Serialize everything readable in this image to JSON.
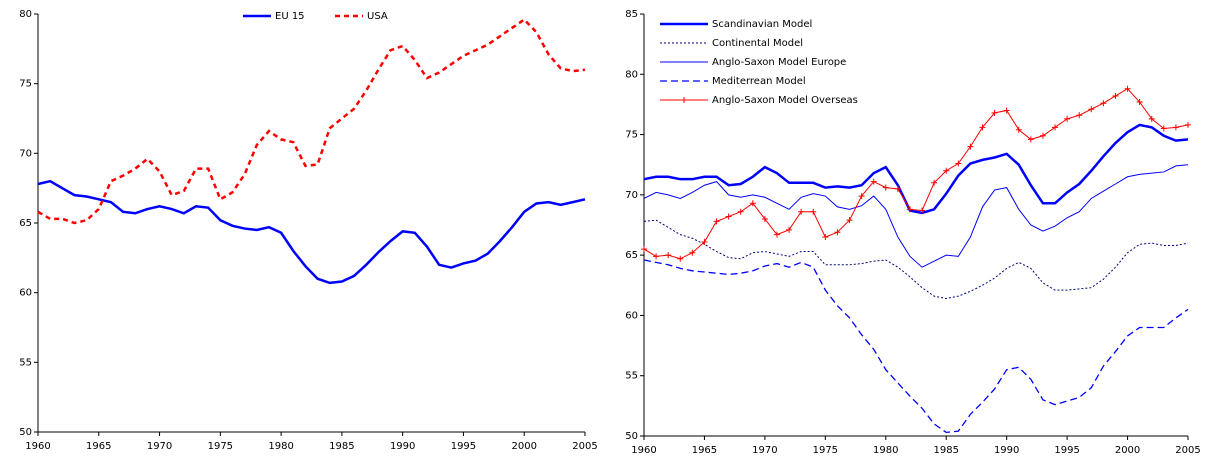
{
  "chart_data": [
    {
      "type": "line",
      "x": [
        1960,
        1961,
        1962,
        1963,
        1964,
        1965,
        1966,
        1967,
        1968,
        1969,
        1970,
        1971,
        1972,
        1973,
        1974,
        1975,
        1976,
        1977,
        1978,
        1979,
        1980,
        1981,
        1982,
        1983,
        1984,
        1985,
        1986,
        1987,
        1988,
        1989,
        1990,
        1991,
        1992,
        1993,
        1994,
        1995,
        1996,
        1997,
        1998,
        1999,
        2000,
        2001,
        2002,
        2003,
        2004,
        2005
      ],
      "xlim": [
        1960,
        2005
      ],
      "xticks": [
        1960,
        1965,
        1970,
        1975,
        1980,
        1985,
        1990,
        1995,
        2000,
        2005
      ],
      "ylim": [
        50,
        80
      ],
      "yticks": [
        50,
        55,
        60,
        65,
        70,
        75,
        80
      ],
      "legend": "top-center",
      "series": [
        {
          "name": "EU 15",
          "color": "#0000ff",
          "linestyle": "solid-thick",
          "values": [
            67.8,
            68.0,
            67.5,
            67.0,
            66.9,
            66.7,
            66.5,
            65.8,
            65.7,
            66.0,
            66.2,
            66.0,
            65.7,
            66.2,
            66.1,
            65.2,
            64.8,
            64.6,
            64.5,
            64.7,
            64.3,
            63.0,
            61.9,
            61.0,
            60.7,
            60.8,
            61.2,
            62.0,
            62.9,
            63.7,
            64.4,
            64.3,
            63.3,
            62.0,
            61.8,
            62.1,
            62.3,
            62.8,
            63.7,
            64.7,
            65.8,
            66.4,
            66.5,
            66.3,
            66.5,
            66.7
          ]
        },
        {
          "name": "USA",
          "color": "#ff0000",
          "linestyle": "dashed-thick",
          "values": [
            65.8,
            65.3,
            65.3,
            65.0,
            65.2,
            66.0,
            68.0,
            68.4,
            68.9,
            69.6,
            68.7,
            67.0,
            67.3,
            68.9,
            68.9,
            66.7,
            67.2,
            68.5,
            70.6,
            71.6,
            71.0,
            70.8,
            69.1,
            69.2,
            71.8,
            72.5,
            73.2,
            74.5,
            76.0,
            77.4,
            77.7,
            76.7,
            75.4,
            75.8,
            76.4,
            77.0,
            77.4,
            77.8,
            78.4,
            79.0,
            79.6,
            78.7,
            77.1,
            76.1,
            75.9,
            76.0
          ]
        }
      ]
    },
    {
      "type": "line",
      "x": [
        1960,
        1961,
        1962,
        1963,
        1964,
        1965,
        1966,
        1967,
        1968,
        1969,
        1970,
        1971,
        1972,
        1973,
        1974,
        1975,
        1976,
        1977,
        1978,
        1979,
        1980,
        1981,
        1982,
        1983,
        1984,
        1985,
        1986,
        1987,
        1988,
        1989,
        1990,
        1991,
        1992,
        1993,
        1994,
        1995,
        1996,
        1997,
        1998,
        1999,
        2000,
        2001,
        2002,
        2003,
        2004,
        2005
      ],
      "xlim": [
        1960,
        2005
      ],
      "xticks": [
        1960,
        1965,
        1970,
        1975,
        1980,
        1985,
        1990,
        1995,
        2000,
        2005
      ],
      "ylim": [
        50,
        85
      ],
      "yticks": [
        50,
        55,
        60,
        65,
        70,
        75,
        80,
        85
      ],
      "legend": "top-left",
      "series": [
        {
          "name": "Scandinavian Model",
          "color": "#0000ff",
          "linestyle": "solid-thick",
          "values": [
            71.3,
            71.5,
            71.5,
            71.3,
            71.3,
            71.5,
            71.5,
            70.8,
            70.9,
            71.5,
            72.3,
            71.8,
            71.0,
            71.0,
            71.0,
            70.6,
            70.7,
            70.6,
            70.8,
            71.8,
            72.3,
            70.8,
            68.7,
            68.5,
            68.8,
            70.1,
            71.6,
            72.6,
            72.9,
            73.1,
            73.4,
            72.5,
            70.8,
            69.3,
            69.3,
            70.2,
            70.9,
            72.0,
            73.2,
            74.3,
            75.2,
            75.8,
            75.6,
            74.9,
            74.5,
            74.6
          ]
        },
        {
          "name": "Continental Model",
          "color": "#000080",
          "linestyle": "dotted",
          "values": [
            67.8,
            67.9,
            67.3,
            66.7,
            66.4,
            65.9,
            65.3,
            64.8,
            64.7,
            65.2,
            65.3,
            65.1,
            64.9,
            65.3,
            65.3,
            64.2,
            64.2,
            64.2,
            64.3,
            64.5,
            64.6,
            64.0,
            63.2,
            62.3,
            61.6,
            61.4,
            61.6,
            62.0,
            62.5,
            63.1,
            63.9,
            64.4,
            63.9,
            62.7,
            62.1,
            62.1,
            62.2,
            62.3,
            63.0,
            64.0,
            65.2,
            65.9,
            66.0,
            65.8,
            65.8,
            66.0
          ]
        },
        {
          "name": "Anglo-Saxon Model Europe",
          "color": "#0000ff",
          "linestyle": "solid-thin",
          "values": [
            69.7,
            70.2,
            70.0,
            69.7,
            70.2,
            70.8,
            71.1,
            70.0,
            69.8,
            70.0,
            69.8,
            69.3,
            68.8,
            69.8,
            70.1,
            69.9,
            69.0,
            68.8,
            69.1,
            69.9,
            68.8,
            66.5,
            64.9,
            64.0,
            64.5,
            65.0,
            64.9,
            66.5,
            69.0,
            70.4,
            70.6,
            68.8,
            67.5,
            67.0,
            67.4,
            68.1,
            68.6,
            69.7,
            70.3,
            70.9,
            71.5,
            71.7,
            71.8,
            71.9,
            72.4,
            72.5
          ]
        },
        {
          "name": "Mediterrean Model",
          "color": "#0000ff",
          "linestyle": "dashed",
          "values": [
            64.6,
            64.4,
            64.2,
            63.9,
            63.7,
            63.6,
            63.5,
            63.4,
            63.5,
            63.7,
            64.1,
            64.3,
            64.0,
            64.4,
            64.0,
            62.1,
            60.8,
            59.8,
            58.4,
            57.2,
            55.5,
            54.4,
            53.3,
            52.3,
            51.0,
            50.3,
            50.4,
            51.8,
            52.8,
            53.9,
            55.5,
            55.7,
            54.7,
            53.0,
            52.6,
            52.9,
            53.2,
            54.0,
            55.8,
            57.0,
            58.3,
            59.0,
            59.0,
            59.0,
            59.8,
            60.5
          ]
        },
        {
          "name": "Anglo-Saxon Model Overseas",
          "color": "#ff0000",
          "linestyle": "solid-thin",
          "marker": "plus",
          "values": [
            65.5,
            64.9,
            65.0,
            64.7,
            65.2,
            66.1,
            67.8,
            68.2,
            68.6,
            69.3,
            68.0,
            66.7,
            67.1,
            68.6,
            68.6,
            66.5,
            66.9,
            67.9,
            69.9,
            71.1,
            70.6,
            70.5,
            68.8,
            68.7,
            71.0,
            72.0,
            72.6,
            74.0,
            75.6,
            76.8,
            77.0,
            75.4,
            74.6,
            74.9,
            75.6,
            76.3,
            76.6,
            77.1,
            77.6,
            78.2,
            78.8,
            77.7,
            76.3,
            75.5,
            75.6,
            75.8
          ]
        }
      ]
    }
  ]
}
